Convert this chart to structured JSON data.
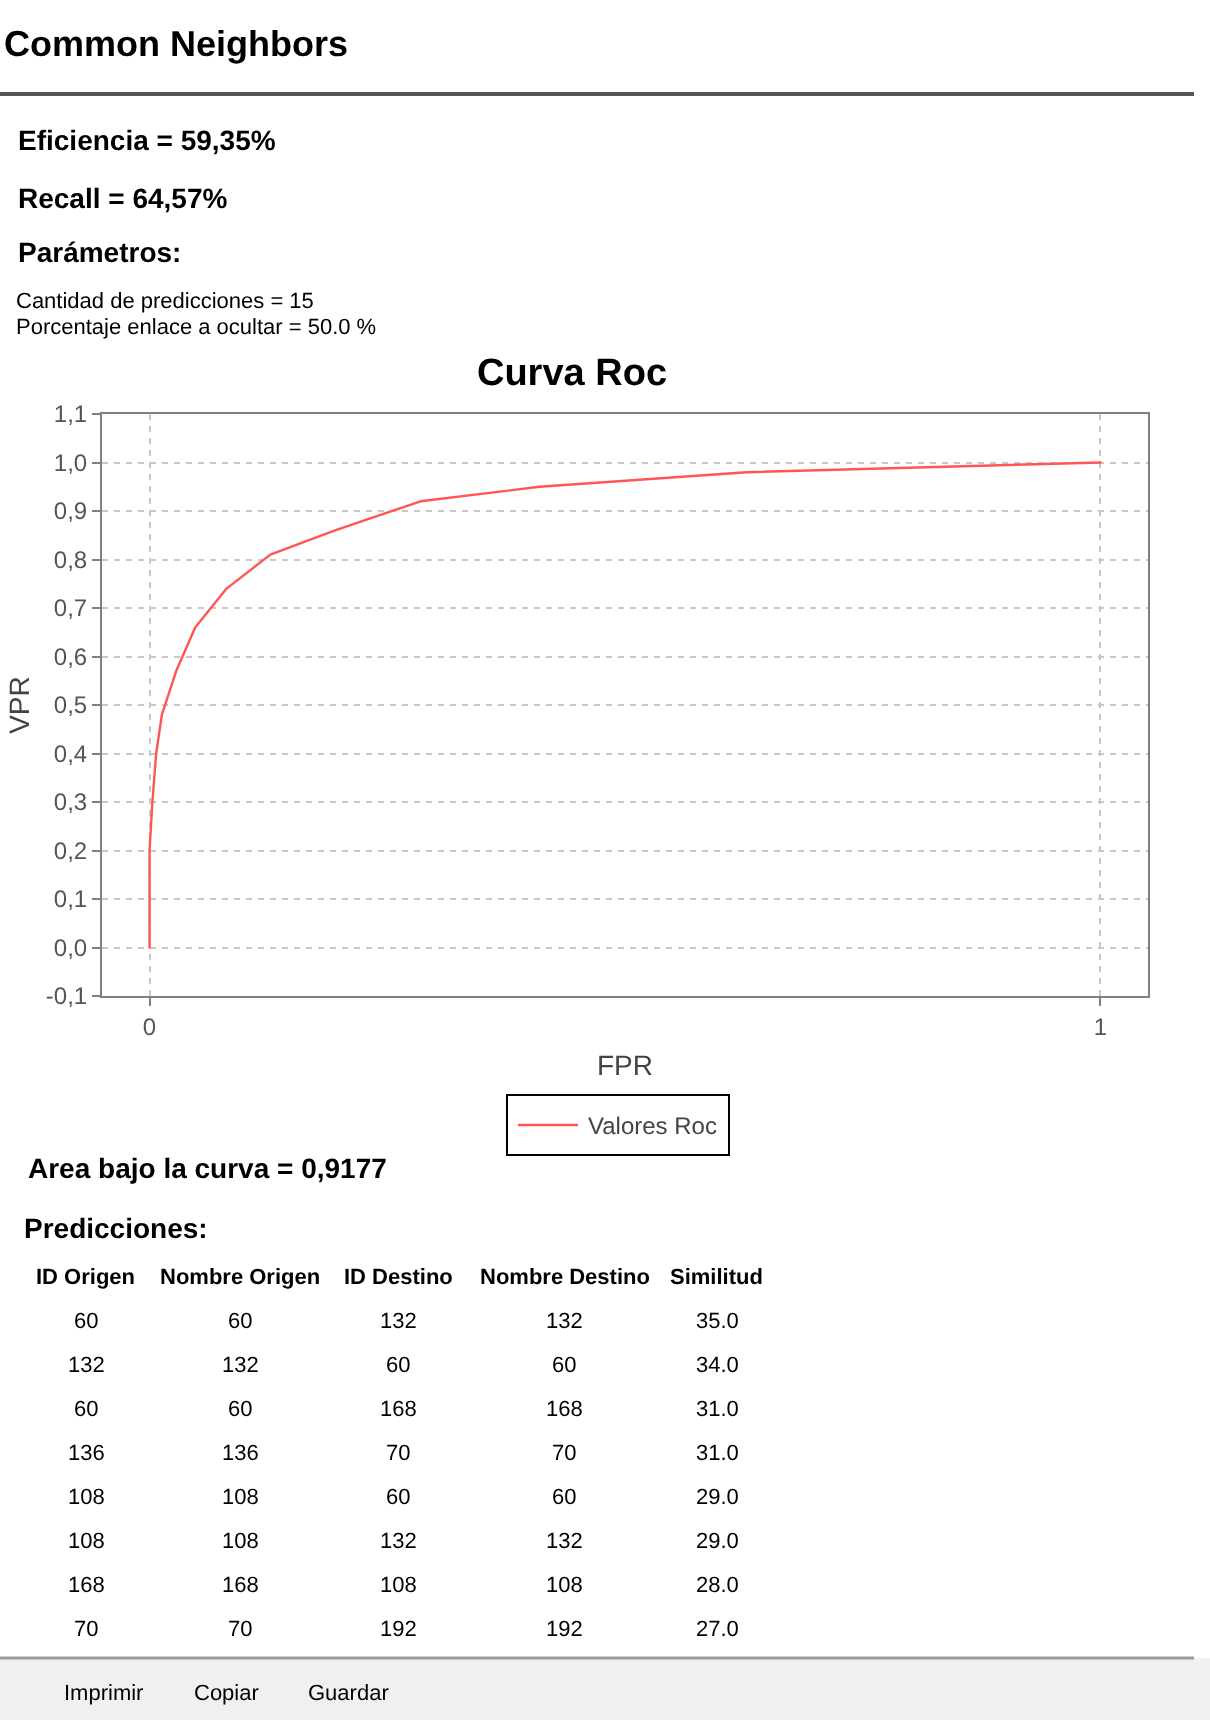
{
  "chart_data": {
    "type": "line",
    "title": "Curva Roc",
    "xlabel": "FPR",
    "ylabel": "VPR",
    "x": [
      0,
      0,
      0.003,
      0.007,
      0.013,
      0.028,
      0.048,
      0.081,
      0.127,
      0.195,
      0.285,
      0.41,
      0.628,
      1
    ],
    "series": [
      {
        "name": "Valores Roc",
        "color": "#ff5555",
        "values": [
          0,
          0.2,
          0.3,
          0.4,
          0.48,
          0.57,
          0.66,
          0.74,
          0.81,
          0.86,
          0.92,
          0.95,
          0.98,
          1
        ]
      }
    ],
    "xlim": [
      -0.05,
      1.05
    ],
    "xticks": [
      0,
      1
    ],
    "ylim": [
      -0.1,
      1.1
    ],
    "yticks": [
      {
        "value": -0.1,
        "label": "-0,1"
      },
      {
        "value": 0,
        "label": "0,0"
      },
      {
        "value": 0.1,
        "label": "0,1"
      },
      {
        "value": 0.2,
        "label": "0,2"
      },
      {
        "value": 0.3,
        "label": "0,3"
      },
      {
        "value": 0.4,
        "label": "0,4"
      },
      {
        "value": 0.5,
        "label": "0,5"
      },
      {
        "value": 0.6,
        "label": "0,6"
      },
      {
        "value": 0.7,
        "label": "0,7"
      },
      {
        "value": 0.8,
        "label": "0,8"
      },
      {
        "value": 0.9,
        "label": "0,9"
      },
      {
        "value": 1.0,
        "label": "1,0"
      },
      {
        "value": 1.1,
        "label": "1,1"
      }
    ],
    "grid": true,
    "legend": "bottom",
    "line_style": "solid",
    "annotations": [
      "Common Neighbors",
      "Eficiencia = 59,35%",
      "Recall = 64,57%",
      "Parámetros:",
      "Cantidad de predicciones = 15",
      "Porcentaje enlace a ocultar = 50.0 %",
      "Area bajo la curva = 0,9177",
      "Predicciones:",
      "ID Origen",
      "Nombre Origen",
      "ID Destino",
      "Nombre Destino",
      "Similitud",
      "60",
      "60",
      "132",
      "132",
      "35.0",
      "132",
      "132",
      "60",
      "60",
      "34.0",
      "60",
      "60",
      "168",
      "168",
      "31.0",
      "136",
      "136",
      "70",
      "70",
      "31.0",
      "108",
      "108",
      "60",
      "60",
      "29.0",
      "108",
      "108",
      "132",
      "132",
      "29.0",
      "168",
      "168",
      "108",
      "108",
      "28.0",
      "70",
      "70",
      "192",
      "192",
      "27.0",
      "Imprimir",
      "Copiar",
      "Guardar"
    ]
  }
}
